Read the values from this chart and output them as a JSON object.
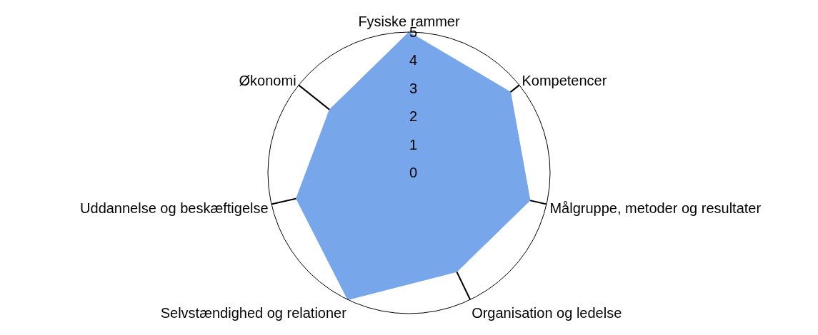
{
  "chart_data": {
    "type": "radar",
    "categories": [
      "Fysiske rammer",
      "Kompetencer",
      "Målgruppe, metoder og resultater",
      "Organisation og ledelse",
      "Selvstændighed og relationer",
      "Uddannelse og beskæftigelse",
      "Økonomi"
    ],
    "series": [
      {
        "color": "#77a6ea",
        "values": [
          5,
          4.6,
          4.4,
          3.9,
          5,
          4.1,
          3.6
        ]
      }
    ],
    "ylim": [
      0,
      5
    ],
    "yticks": [
      0,
      1,
      2,
      3,
      4,
      5
    ],
    "grid": "x"
  }
}
